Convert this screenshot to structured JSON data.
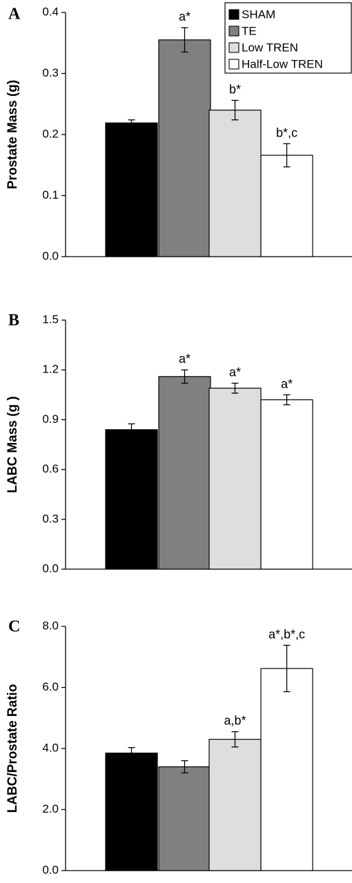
{
  "chart_data": [
    {
      "type": "bar",
      "panel_label": "A",
      "ylabel": "Prostate Mass (g)",
      "ylim": [
        0,
        0.4
      ],
      "yticks": [
        "0.0",
        "0.1",
        "0.2",
        "0.3",
        "0.4"
      ],
      "categories": [
        "SHAM",
        "TE",
        "Low TREN",
        "Half-Low TREN"
      ],
      "values": [
        0.219,
        0.355,
        0.24,
        0.166
      ],
      "errors": [
        0.005,
        0.02,
        0.016,
        0.019
      ],
      "annotations": [
        "",
        "a*",
        "b*",
        "b*,c"
      ],
      "legend": {
        "position": "top-right",
        "entries": [
          "SHAM",
          "TE",
          "Low TREN",
          "Half-Low TREN"
        ]
      },
      "grid": false
    },
    {
      "type": "bar",
      "panel_label": "B",
      "ylabel": "LABC Mass (g )",
      "ylim": [
        0,
        1.5
      ],
      "yticks": [
        "0.0",
        "0.3",
        "0.6",
        "0.9",
        "1.2",
        "1.5"
      ],
      "categories": [
        "SHAM",
        "TE",
        "Low TREN",
        "Half-Low TREN"
      ],
      "values": [
        0.84,
        1.16,
        1.09,
        1.02
      ],
      "errors": [
        0.035,
        0.04,
        0.03,
        0.03
      ],
      "annotations": [
        "",
        "a*",
        "a*",
        "a*"
      ],
      "grid": false
    },
    {
      "type": "bar",
      "panel_label": "C",
      "ylabel": "LABC/Prostate Ratio",
      "ylim": [
        0,
        8
      ],
      "yticks": [
        "0.0",
        "2.0",
        "4.0",
        "6.0",
        "8.0"
      ],
      "categories": [
        "SHAM",
        "TE",
        "Low TREN",
        "Half-Low TREN"
      ],
      "values": [
        3.85,
        3.4,
        4.3,
        6.62
      ],
      "errors": [
        0.18,
        0.2,
        0.25,
        0.76
      ],
      "annotations": [
        "",
        "",
        "a,b*",
        "a*,b*,c"
      ],
      "grid": false
    }
  ],
  "colors": {
    "SHAM": "#000000",
    "TE": "#808080",
    "Low TREN": "#dedede",
    "Half-Low TREN": "#ffffff"
  }
}
